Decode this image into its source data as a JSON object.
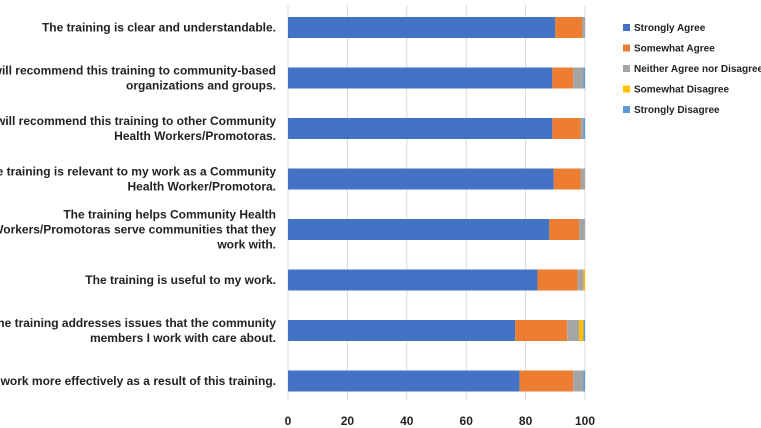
{
  "chart_data": {
    "type": "bar",
    "orientation": "horizontal",
    "stacked": true,
    "title": "",
    "xlabel": "",
    "ylabel": "",
    "xlim": [
      0,
      100
    ],
    "xticks": [
      0,
      20,
      40,
      60,
      80,
      100
    ],
    "grid": true,
    "legend_position": "right",
    "categories": [
      [
        "The training is clear and understandable."
      ],
      [
        "I will recommend this training to community-based",
        "organizations and groups."
      ],
      [
        "I will recommend this training to other Community",
        "Health Workers/Promotoras."
      ],
      [
        "The training is relevant to my work as a Community",
        "Health Worker/Promotora."
      ],
      [
        "The training helps Community Health",
        "Workers/Promotoras serve communities that they",
        "work with."
      ],
      [
        "The training is useful to my work."
      ],
      [
        "The training addresses issues that the community",
        "members I work with care about."
      ],
      [
        "I will work more effectively as a result of this training."
      ]
    ],
    "series": [
      {
        "name": "Strongly Agree",
        "color": "#4472C4",
        "values": [
          90,
          89,
          89,
          89.5,
          88,
          84,
          76.5,
          78
        ]
      },
      {
        "name": "Somewhat Agree",
        "color": "#ED7D31",
        "values": [
          9,
          7,
          9.5,
          9,
          10,
          13.5,
          17.5,
          18
        ]
      },
      {
        "name": "Neither Agree nor Disagree",
        "color": "#A5A5A5",
        "values": [
          1,
          3.5,
          1,
          1.5,
          2,
          2,
          4,
          3.5
        ]
      },
      {
        "name": "Somewhat Disagree",
        "color": "#FFC000",
        "values": [
          0,
          0,
          0,
          0,
          0,
          0.5,
          1.5,
          0
        ]
      },
      {
        "name": "Strongly Disagree",
        "color": "#5B9BD5",
        "values": [
          0,
          0.5,
          0.5,
          0,
          0,
          0,
          0.5,
          0.5
        ]
      }
    ]
  }
}
